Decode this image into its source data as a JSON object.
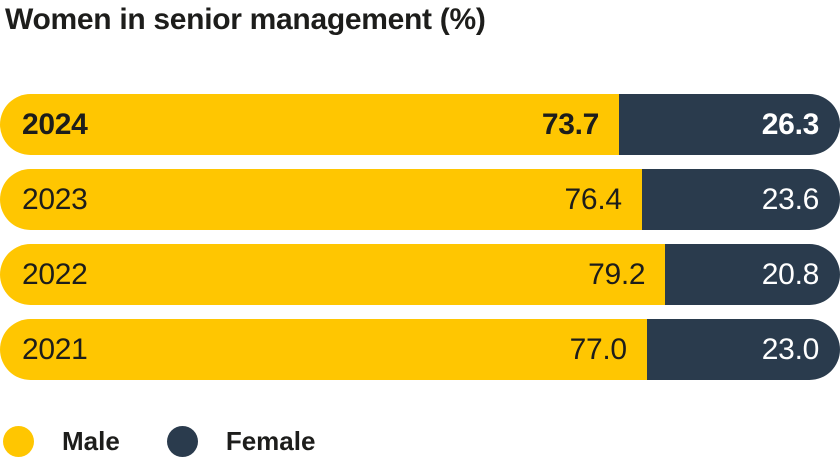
{
  "title": "Women in senior management (%)",
  "colors": {
    "male": "#FFC601",
    "female": "#2A3B4D",
    "text_dark": "#1D1D1B",
    "text_light": "#FFFFFF",
    "background": "#FFFFFF"
  },
  "chart_data": {
    "type": "bar",
    "orientation": "horizontal",
    "stacked": true,
    "title": "Women in senior management (%)",
    "unit": "%",
    "xlim": [
      0,
      100
    ],
    "grid": false,
    "legend_position": "bottom",
    "highlight_category": "2024",
    "categories": [
      "2024",
      "2023",
      "2022",
      "2021"
    ],
    "series": [
      {
        "name": "Male",
        "color": "#FFC601",
        "values": [
          73.7,
          76.4,
          79.2,
          77.0
        ]
      },
      {
        "name": "Female",
        "color": "#2A3B4D",
        "values": [
          26.3,
          23.6,
          20.8,
          23.0
        ]
      }
    ],
    "rows": [
      {
        "year": "2024",
        "male_pct": 73.7,
        "male_label": "73.7",
        "female_label": "26.3",
        "highlight": true
      },
      {
        "year": "2023",
        "male_pct": 76.4,
        "male_label": "76.4",
        "female_label": "23.6",
        "highlight": false
      },
      {
        "year": "2022",
        "male_pct": 79.2,
        "male_label": "79.2",
        "female_label": "20.8",
        "highlight": false
      },
      {
        "year": "2021",
        "male_pct": 77.0,
        "male_label": "77.0",
        "female_label": "23.0",
        "highlight": false
      }
    ]
  },
  "legend": {
    "items": [
      {
        "label": "Male",
        "color": "#FFC601"
      },
      {
        "label": "Female",
        "color": "#2A3B4D"
      }
    ]
  }
}
